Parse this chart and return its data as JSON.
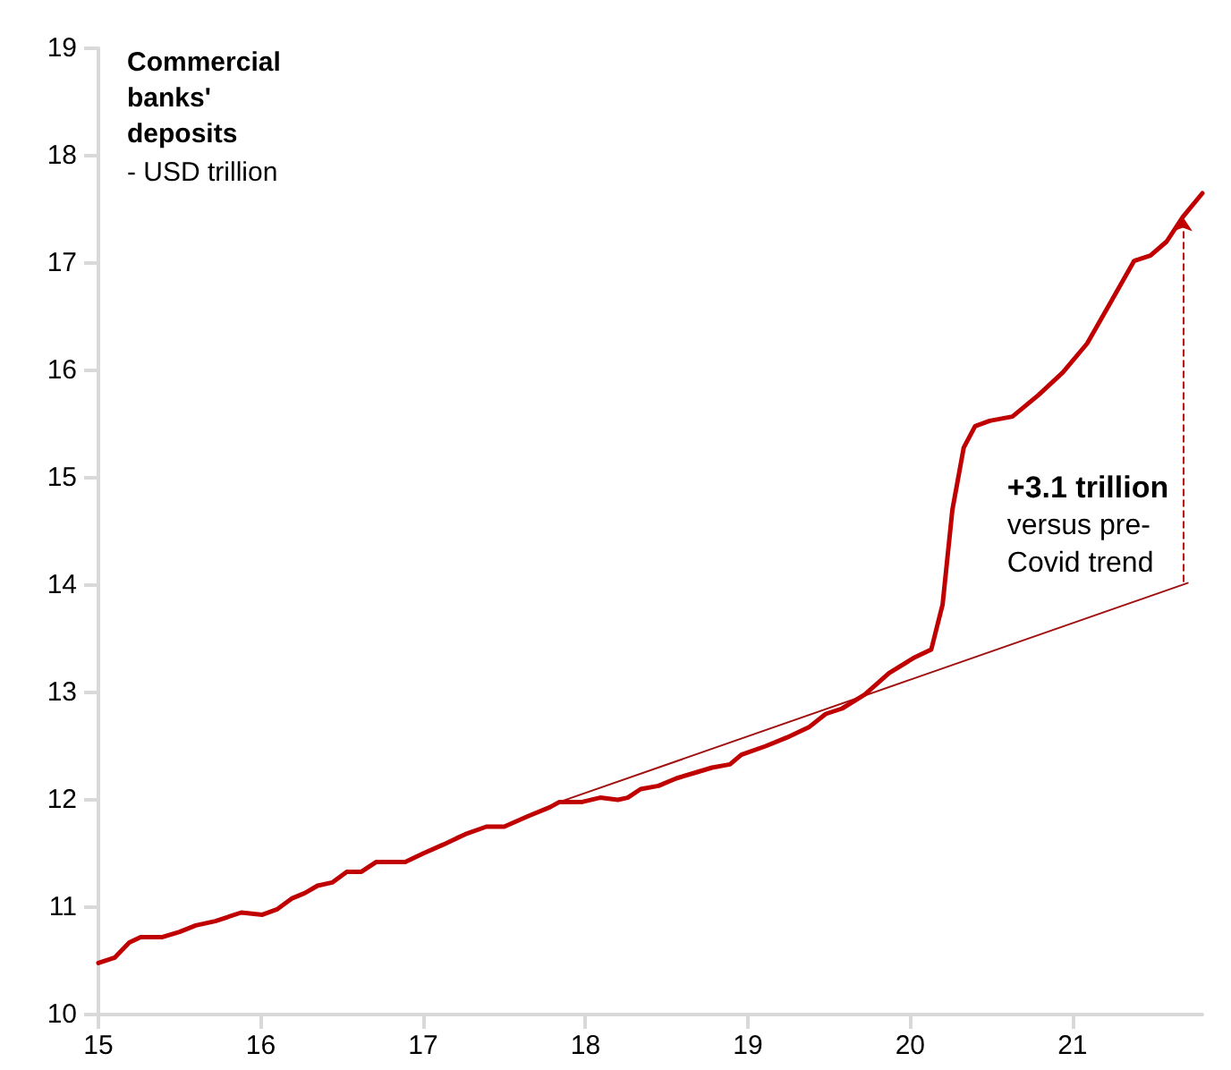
{
  "chart_data": {
    "type": "line",
    "title": "Commercial banks' deposits",
    "subtitle": "- USD trillion",
    "series": [
      {
        "color": "#c00000",
        "x": [
          15.0,
          15.1,
          15.19,
          15.26,
          15.39,
          15.5,
          15.6,
          15.72,
          15.88,
          16.01,
          16.1,
          16.19,
          16.27,
          16.35,
          16.44,
          16.53,
          16.62,
          16.71,
          16.89,
          17.0,
          17.12,
          17.26,
          17.39,
          17.5,
          17.65,
          17.78,
          17.84,
          17.98,
          18.09,
          18.2,
          18.26,
          18.34,
          18.45,
          18.56,
          18.67,
          18.78,
          18.89,
          18.96,
          19.11,
          19.24,
          19.38,
          19.48,
          19.58,
          19.72,
          19.87,
          20.02,
          20.13,
          20.2,
          20.26,
          20.33,
          20.4,
          20.49,
          20.63,
          20.79,
          20.94,
          21.09,
          21.23,
          21.38,
          21.48,
          21.58,
          21.68,
          21.8
        ],
        "values": [
          10.48,
          10.53,
          10.67,
          10.72,
          10.72,
          10.77,
          10.83,
          10.87,
          10.95,
          10.93,
          10.98,
          11.08,
          11.13,
          11.2,
          11.23,
          11.33,
          11.33,
          11.42,
          11.42,
          11.5,
          11.58,
          11.68,
          11.75,
          11.75,
          11.85,
          11.93,
          11.98,
          11.98,
          12.02,
          12.0,
          12.02,
          12.1,
          12.13,
          12.2,
          12.25,
          12.3,
          12.33,
          12.42,
          12.5,
          12.58,
          12.68,
          12.8,
          12.85,
          12.98,
          13.18,
          13.32,
          13.4,
          13.82,
          14.7,
          15.28,
          15.48,
          15.53,
          15.57,
          15.77,
          15.98,
          16.25,
          16.62,
          17.02,
          17.07,
          17.2,
          17.43,
          17.65
        ]
      },
      {
        "color": "#a01010",
        "x": [
          17.84,
          21.71
        ],
        "values": [
          11.98,
          14.02
        ]
      }
    ],
    "annotations": [
      {
        "text": "+3.1 trillion\nversus pre-\nCovid trend",
        "x": 21.68,
        "y": 14.03
      }
    ],
    "xlim": [
      15,
      21.8
    ],
    "xticks": [
      15,
      16,
      17,
      18,
      19,
      20,
      21
    ],
    "ylim": [
      10,
      19
    ],
    "yticks": [
      10,
      11,
      12,
      13,
      14,
      15,
      16,
      17,
      18,
      19
    ],
    "grid": false,
    "marker": "none",
    "line_style": "solid"
  }
}
